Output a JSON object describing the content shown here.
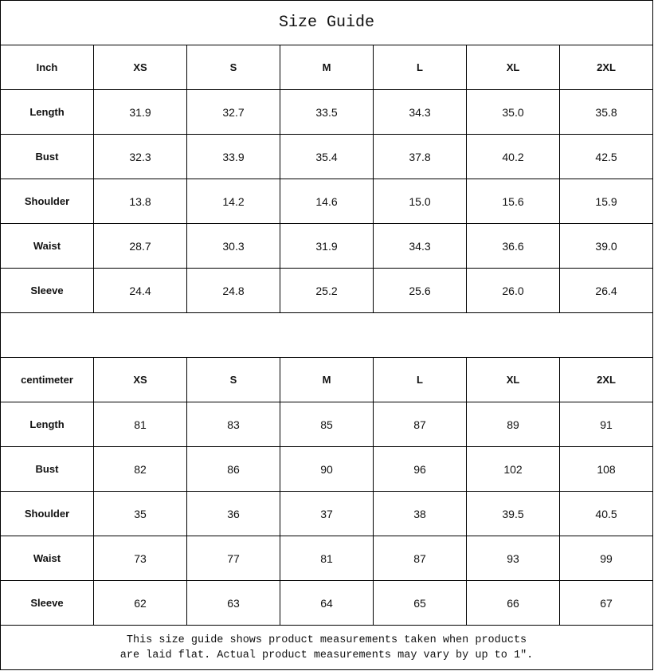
{
  "title": "Size Guide",
  "sizes": [
    "XS",
    "S",
    "M",
    "L",
    "XL",
    "2XL"
  ],
  "tables": [
    {
      "unit": "Inch",
      "rows": [
        {
          "label": "Length",
          "values": [
            "31.9",
            "32.7",
            "33.5",
            "34.3",
            "35.0",
            "35.8"
          ]
        },
        {
          "label": "Bust",
          "values": [
            "32.3",
            "33.9",
            "35.4",
            "37.8",
            "40.2",
            "42.5"
          ]
        },
        {
          "label": "Shoulder",
          "values": [
            "13.8",
            "14.2",
            "14.6",
            "15.0",
            "15.6",
            "15.9"
          ]
        },
        {
          "label": "Waist",
          "values": [
            "28.7",
            "30.3",
            "31.9",
            "34.3",
            "36.6",
            "39.0"
          ]
        },
        {
          "label": "Sleeve",
          "values": [
            "24.4",
            "24.8",
            "25.2",
            "25.6",
            "26.0",
            "26.4"
          ]
        }
      ]
    },
    {
      "unit": "centimeter",
      "rows": [
        {
          "label": "Length",
          "values": [
            "81",
            "83",
            "85",
            "87",
            "89",
            "91"
          ]
        },
        {
          "label": "Bust",
          "values": [
            "82",
            "86",
            "90",
            "96",
            "102",
            "108"
          ]
        },
        {
          "label": "Shoulder",
          "values": [
            "35",
            "36",
            "37",
            "38",
            "39.5",
            "40.5"
          ]
        },
        {
          "label": "Waist",
          "values": [
            "73",
            "77",
            "81",
            "87",
            "93",
            "99"
          ]
        },
        {
          "label": "Sleeve",
          "values": [
            "62",
            "63",
            "64",
            "65",
            "66",
            "67"
          ]
        }
      ]
    }
  ],
  "note": {
    "line1": "This size guide shows product measurements taken when products",
    "line2": "are laid flat. Actual product measurements may vary by up to 1″."
  }
}
